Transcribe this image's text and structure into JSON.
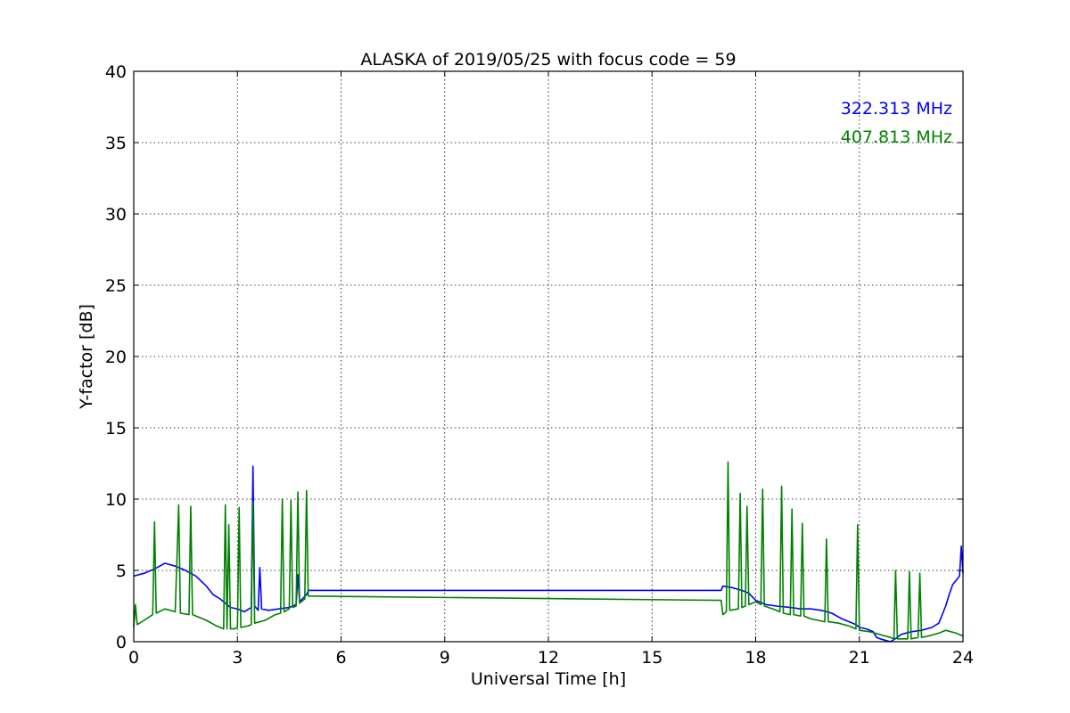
{
  "chart_data": {
    "type": "line",
    "title": "ALASKA of 2019/05/25 with focus code = 59",
    "xlabel": "Universal Time [h]",
    "ylabel": "Y-factor [dB]",
    "xlim": [
      0,
      24
    ],
    "ylim": [
      0,
      40
    ],
    "xticks": [
      0,
      3,
      6,
      9,
      12,
      15,
      18,
      21,
      24
    ],
    "yticks": [
      0,
      5,
      10,
      15,
      20,
      25,
      30,
      35,
      40
    ],
    "grid": true,
    "legend": "top-right",
    "series": [
      {
        "name": "322.313 MHz",
        "color": "#0000ff",
        "x": [
          0,
          0.3,
          0.6,
          0.9,
          1.2,
          1.5,
          1.8,
          2.1,
          2.3,
          2.5,
          2.8,
          3.0,
          3.2,
          3.4,
          3.45,
          3.5,
          3.6,
          3.65,
          3.7,
          3.9,
          4.2,
          4.5,
          4.7,
          4.75,
          4.8,
          5.0,
          5.05,
          17.0,
          17.05,
          17.3,
          17.6,
          17.8,
          18.0,
          18.3,
          18.6,
          19.0,
          19.3,
          19.6,
          19.9,
          20.2,
          20.5,
          20.9,
          21.0,
          21.2,
          21.4,
          21.5,
          21.6,
          21.9,
          22.1,
          22.2,
          22.5,
          22.8,
          23.1,
          23.3,
          23.5,
          23.6,
          23.7,
          23.9,
          23.95,
          24.0
        ],
        "y": [
          4.6,
          4.8,
          5.1,
          5.5,
          5.3,
          5.0,
          4.6,
          3.9,
          3.3,
          3.0,
          2.4,
          2.3,
          2.1,
          2.4,
          12.3,
          2.5,
          2.2,
          5.2,
          2.3,
          2.2,
          2.3,
          2.4,
          2.6,
          4.7,
          2.8,
          3.3,
          3.6,
          3.6,
          3.9,
          3.8,
          3.6,
          3.4,
          2.9,
          2.6,
          2.5,
          2.4,
          2.3,
          2.3,
          2.2,
          2.0,
          1.6,
          1.2,
          1.0,
          0.9,
          0.7,
          0.3,
          0.2,
          0.0,
          0.3,
          0.5,
          0.7,
          0.8,
          1.0,
          1.3,
          2.5,
          3.3,
          4.0,
          4.6,
          6.7,
          4.8
        ]
      },
      {
        "name": "407.813 MHz",
        "color": "#008000",
        "x": [
          0,
          0.05,
          0.1,
          0.3,
          0.55,
          0.6,
          0.65,
          0.9,
          1.2,
          1.3,
          1.35,
          1.6,
          1.65,
          1.7,
          1.9,
          2.1,
          2.4,
          2.6,
          2.65,
          2.7,
          2.75,
          2.8,
          2.9,
          3.0,
          3.05,
          3.1,
          3.3,
          3.4,
          3.45,
          3.5,
          3.8,
          4.1,
          4.25,
          4.3,
          4.35,
          4.5,
          4.55,
          4.6,
          4.7,
          4.75,
          4.8,
          4.95,
          5.0,
          5.05,
          17.0,
          17.05,
          17.15,
          17.2,
          17.25,
          17.5,
          17.55,
          17.6,
          17.7,
          17.75,
          17.8,
          18.0,
          18.15,
          18.2,
          18.25,
          18.5,
          18.7,
          18.75,
          18.8,
          19.0,
          19.05,
          19.1,
          19.3,
          19.35,
          19.4,
          19.6,
          19.8,
          20.0,
          20.05,
          20.1,
          20.4,
          20.7,
          20.9,
          20.95,
          21.0,
          21.3,
          21.6,
          21.9,
          22.0,
          22.05,
          22.1,
          22.3,
          22.4,
          22.45,
          22.5,
          22.7,
          22.75,
          22.8,
          23.0,
          23.3,
          23.5,
          23.8,
          24.0
        ],
        "y": [
          1.0,
          2.6,
          1.2,
          1.5,
          1.9,
          8.4,
          2.0,
          2.3,
          2.1,
          9.6,
          2.0,
          1.9,
          9.5,
          1.9,
          1.7,
          1.5,
          1.1,
          0.9,
          9.6,
          0.9,
          8.2,
          0.9,
          0.9,
          1.0,
          9.4,
          1.0,
          1.1,
          1.2,
          9.8,
          1.3,
          1.5,
          1.9,
          2.0,
          10.0,
          2.1,
          2.3,
          9.9,
          2.4,
          2.5,
          10.5,
          2.7,
          3.0,
          10.6,
          3.2,
          2.9,
          1.9,
          2.1,
          12.6,
          2.2,
          2.3,
          10.4,
          2.4,
          2.5,
          9.5,
          2.6,
          2.8,
          2.6,
          10.7,
          2.5,
          2.3,
          2.1,
          10.9,
          2.0,
          1.9,
          9.3,
          1.9,
          1.8,
          8.3,
          1.8,
          1.6,
          1.5,
          1.4,
          7.2,
          1.4,
          1.3,
          1.1,
          0.9,
          8.2,
          0.8,
          0.7,
          0.5,
          0.3,
          0.2,
          5.0,
          0.2,
          0.2,
          0.2,
          4.9,
          0.2,
          0.3,
          4.8,
          0.3,
          0.4,
          0.6,
          0.8,
          0.6,
          0.4
        ]
      }
    ]
  }
}
